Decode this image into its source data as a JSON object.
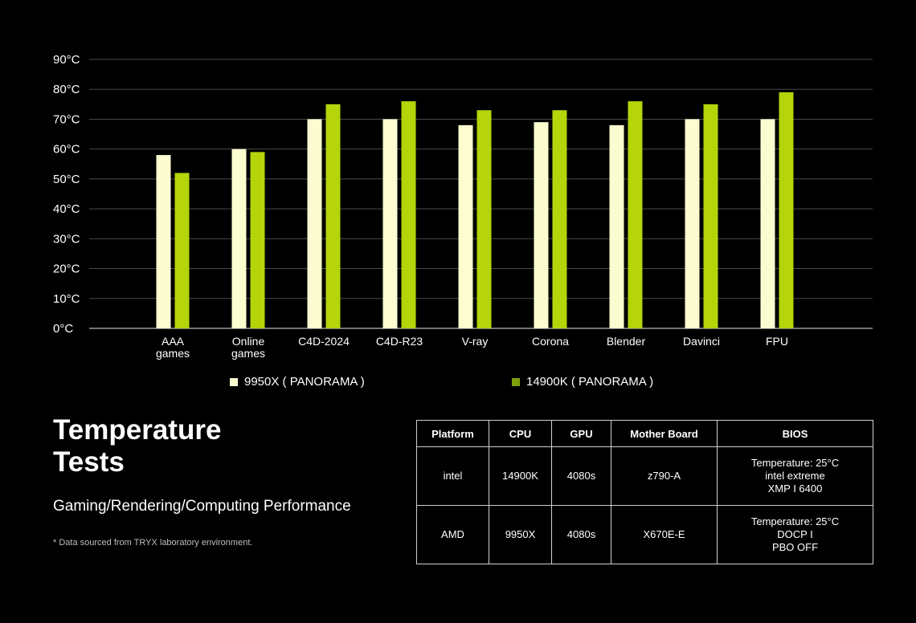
{
  "chart_data": {
    "type": "bar",
    "categories": [
      "AAA\ngames",
      "Online\ngames",
      "C4D-2024",
      "C4D-R23",
      "V-ray",
      "Corona",
      "Blender",
      "Davinci",
      "FPU"
    ],
    "series": [
      {
        "name": "9950X ( PANORAMA )",
        "color": "#fbfdd0",
        "values": [
          58,
          60,
          70,
          70,
          68,
          69,
          68,
          70,
          70
        ]
      },
      {
        "name": "14900K ( PANORAMA )",
        "color": "#b5d40a",
        "values": [
          52,
          59,
          75,
          76,
          73,
          73,
          76,
          75,
          79
        ]
      }
    ],
    "yticks": [
      "0°C",
      "10°C",
      "20°C",
      "30°C",
      "40°C",
      "50°C",
      "60°C",
      "70°C",
      "80°C",
      "90°C"
    ],
    "ylim": [
      0,
      90
    ],
    "grid": true,
    "legend": "bottom"
  },
  "heading": {
    "title_line1": "Temperature",
    "title_line2": "Tests",
    "subtitle": "Gaming/Rendering/Computing Performance"
  },
  "footnote": "* Data sourced from TRYX laboratory environment.",
  "table": {
    "headers": [
      "Platform",
      "CPU",
      "GPU",
      "Mother Board",
      "BIOS"
    ],
    "rows": [
      [
        "intel",
        "14900K",
        "4080s",
        "z790-A",
        "Temperature: 25°C\nintel extreme\nXMP I 6400"
      ],
      [
        "AMD",
        "9950X",
        "4080s",
        "X670E-E",
        "Temperature: 25°C\nDOCP I\nPBO OFF"
      ]
    ]
  }
}
